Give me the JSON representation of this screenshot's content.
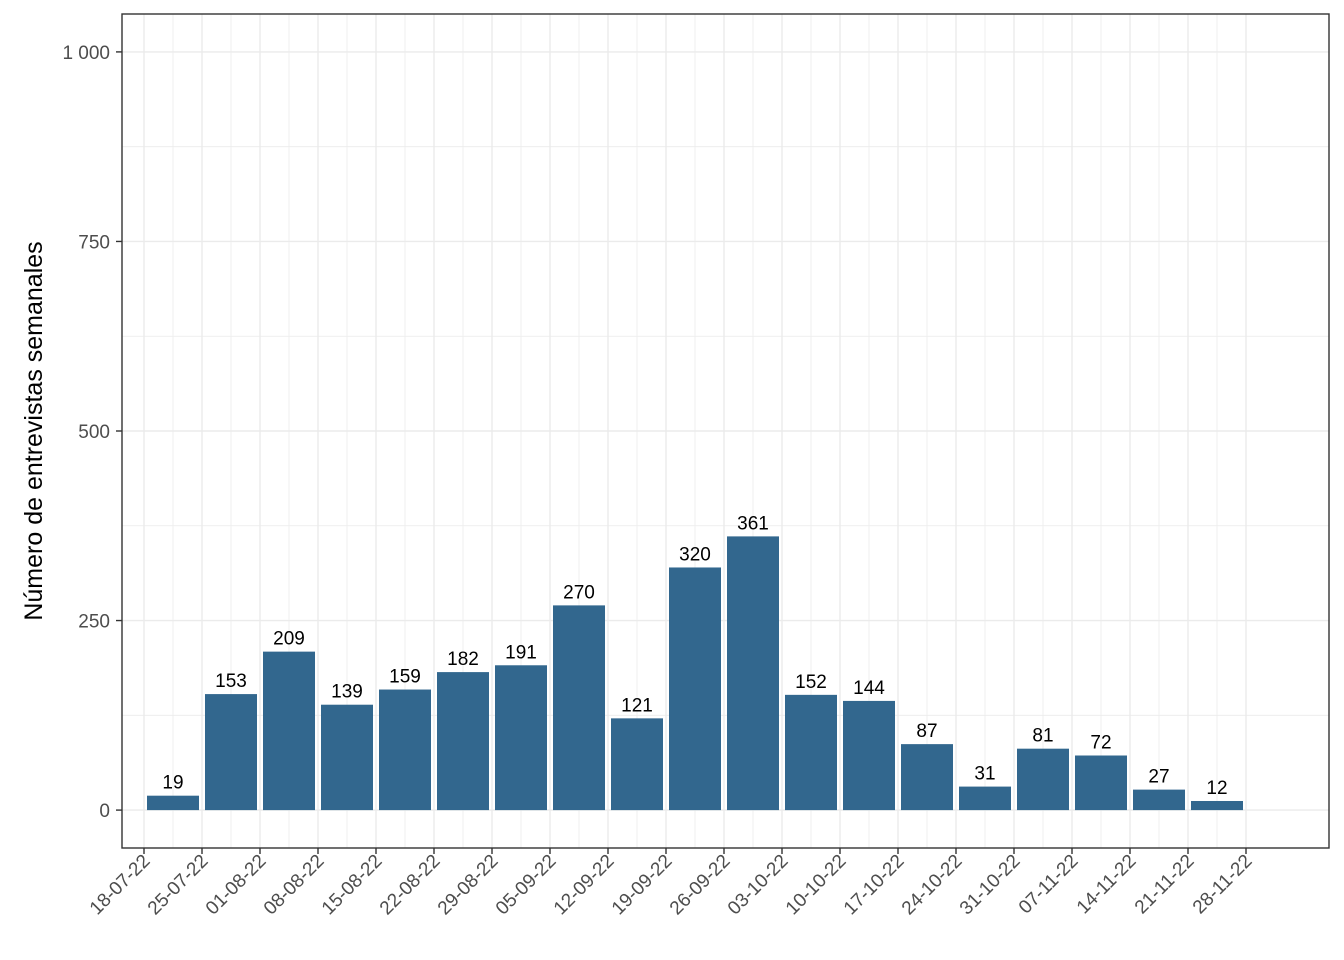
{
  "chart_data": {
    "type": "bar",
    "title": "",
    "xlabel": "",
    "ylabel": "Número de entrevistas semanales",
    "ylim": [
      -50,
      1050
    ],
    "yticks": [
      0,
      250,
      500,
      750,
      1000
    ],
    "ytick_labels": [
      "0",
      "250",
      "500",
      "750",
      "1 000"
    ],
    "xtick_labels": [
      "18-07-22",
      "25-07-22",
      "01-08-22",
      "08-08-22",
      "15-08-22",
      "22-08-22",
      "29-08-22",
      "05-09-22",
      "12-09-22",
      "19-09-22",
      "26-09-22",
      "03-10-22",
      "10-10-22",
      "17-10-22",
      "24-10-22",
      "31-10-22",
      "07-11-22",
      "14-11-22",
      "21-11-22",
      "28-11-22"
    ],
    "categories": [
      "18-07-22",
      "25-07-22",
      "01-08-22",
      "08-08-22",
      "15-08-22",
      "22-08-22",
      "29-08-22",
      "05-09-22",
      "12-09-22",
      "19-09-22",
      "26-09-22",
      "03-10-22",
      "10-10-22",
      "17-10-22",
      "24-10-22",
      "31-10-22",
      "07-11-22",
      "14-11-22",
      "21-11-22"
    ],
    "values": [
      19,
      153,
      209,
      139,
      159,
      182,
      191,
      270,
      121,
      320,
      361,
      152,
      144,
      87,
      31,
      81,
      72,
      27,
      12
    ],
    "grid": true,
    "legend": "none",
    "colors": {
      "bar": "#32678e",
      "grid": "#ebebeb",
      "panel_border": "#333333",
      "tick_text": "#4d4d4d"
    }
  }
}
